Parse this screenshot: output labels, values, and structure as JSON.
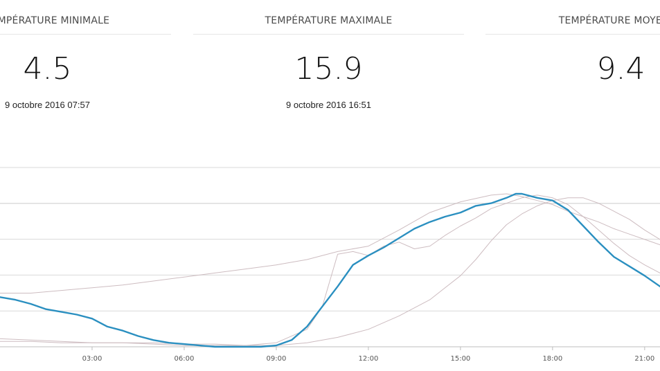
{
  "stats": {
    "min": {
      "title": "TEMPÉRATURE MINIMALE",
      "value": "4.5",
      "date": "9 octobre 2016 07:57"
    },
    "max": {
      "title": "TEMPÉRATURE MAXIMALE",
      "value": "15.9",
      "date": "9 octobre 2016 16:51"
    },
    "avg": {
      "title": "TEMPÉRATURE MOYENNE",
      "value": "9.4",
      "date": ""
    }
  },
  "chart_data": {
    "type": "line",
    "xlim": [
      0,
      21.5
    ],
    "ylim": [
      4.5,
      15.9
    ],
    "x_ticks": [
      {
        "hour": 3,
        "label": "03:00"
      },
      {
        "hour": 6,
        "label": "06:00"
      },
      {
        "hour": 9,
        "label": "09:00"
      },
      {
        "hour": 12,
        "label": "12:00"
      },
      {
        "hour": 15,
        "label": "15:00"
      },
      {
        "hour": 18,
        "label": "18:00"
      },
      {
        "hour": 21,
        "label": "21:00"
      }
    ],
    "grid": true,
    "colors": {
      "main": "#2a8fc0",
      "reference": "#cdbcc0",
      "grid": "#d9d9d9"
    },
    "series": [
      {
        "role": "main",
        "x": [
          0,
          0.5,
          1,
          1.5,
          2,
          2.5,
          3,
          3.5,
          4,
          4.5,
          5,
          5.5,
          6,
          6.5,
          7,
          7.5,
          8,
          8.5,
          9,
          9.5,
          10,
          10.5,
          11,
          11.5,
          12,
          12.5,
          13,
          13.5,
          14,
          14.5,
          15,
          15.5,
          16,
          16.5,
          16.8,
          17,
          17.5,
          18,
          18.5,
          19,
          19.5,
          20,
          20.5,
          21,
          21.5
        ],
        "y": [
          8.2,
          8.0,
          7.7,
          7.3,
          7.1,
          6.9,
          6.6,
          6.0,
          5.7,
          5.3,
          5.0,
          4.8,
          4.7,
          4.6,
          4.5,
          4.5,
          4.5,
          4.5,
          4.6,
          5.0,
          6.0,
          7.5,
          9.0,
          10.6,
          11.3,
          11.9,
          12.6,
          13.3,
          13.8,
          14.2,
          14.5,
          15.0,
          15.2,
          15.6,
          15.9,
          15.9,
          15.6,
          15.4,
          14.7,
          13.5,
          12.3,
          11.2,
          10.5,
          9.8,
          9.0
        ]
      },
      {
        "role": "reference",
        "x": [
          0,
          1,
          2,
          3,
          4,
          5,
          6,
          7,
          8,
          9,
          10,
          10.5,
          11,
          11.5,
          12,
          12.5,
          13,
          13.5,
          14,
          14.5,
          15,
          15.5,
          16,
          16.5,
          17,
          17.5,
          18,
          18.5,
          19,
          19.5,
          20,
          20.5,
          21,
          21.5
        ],
        "y": [
          5.1,
          5.0,
          4.9,
          4.8,
          4.8,
          4.7,
          4.6,
          4.6,
          4.6,
          4.8,
          5.8,
          7.5,
          11.4,
          11.6,
          11.3,
          12.0,
          12.3,
          11.8,
          12.0,
          12.8,
          13.5,
          14.1,
          14.8,
          15.2,
          15.6,
          15.8,
          15.6,
          15.1,
          14.2,
          13.2,
          12.2,
          11.3,
          10.6,
          10.0
        ]
      },
      {
        "role": "reference",
        "x": [
          0,
          1,
          2,
          3,
          4,
          5,
          6,
          7,
          8,
          9,
          10,
          11,
          12,
          13,
          14,
          15,
          15.5,
          16,
          16.5,
          17,
          17.5,
          18,
          18.5,
          19,
          19.5,
          20,
          20.5,
          21,
          21.5
        ],
        "y": [
          4.9,
          4.9,
          4.8,
          4.8,
          4.8,
          4.8,
          4.7,
          4.7,
          4.6,
          4.6,
          4.8,
          5.2,
          5.8,
          6.8,
          8.0,
          9.8,
          11.0,
          12.4,
          13.6,
          14.4,
          15.0,
          15.4,
          15.6,
          15.6,
          15.2,
          14.6,
          14.0,
          13.2,
          12.5
        ]
      },
      {
        "role": "reference",
        "x": [
          0,
          1,
          2,
          3,
          4,
          5,
          6,
          7,
          8,
          9,
          10,
          11,
          12,
          13,
          14,
          15,
          16,
          16.5,
          17,
          17.5,
          18,
          18.5,
          19,
          19.5,
          20,
          20.5,
          21,
          21.5
        ],
        "y": [
          8.5,
          8.5,
          8.7,
          8.9,
          9.1,
          9.4,
          9.7,
          10.0,
          10.3,
          10.6,
          11.0,
          11.6,
          12.0,
          13.2,
          14.5,
          15.3,
          15.8,
          15.9,
          15.7,
          15.4,
          15.1,
          14.6,
          14.2,
          13.8,
          13.3,
          12.9,
          12.5,
          12.1
        ]
      }
    ]
  }
}
